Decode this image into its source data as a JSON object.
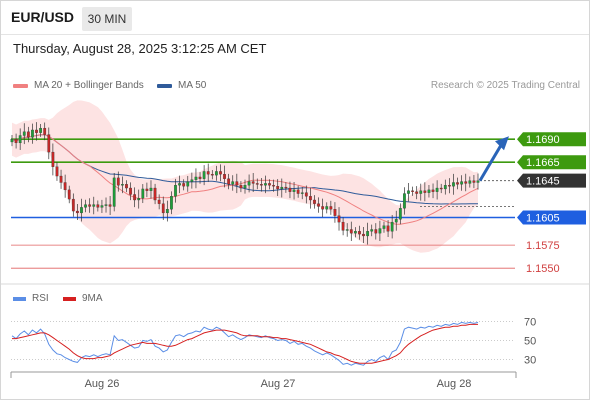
{
  "header": {
    "symbol": "EUR/USD",
    "timeframe": "30 MIN",
    "datetime": "Thursday, August 28, 2025 3:12:25 AM CET"
  },
  "legend": {
    "ma20_label": "MA 20 + Bollinger Bands",
    "ma50_label": "MA 50",
    "source": "Research © 2025 Trading Central"
  },
  "rsi_legend": {
    "rsi_label": "RSI",
    "ma_label": "9MA"
  },
  "colors": {
    "ma20": "#f08080",
    "ma50": "#2f5b9a",
    "bands": "#fde3e3",
    "up": "#1f9e3a",
    "down": "#c62828",
    "green_level": "#3d9a0f",
    "blue_level": "#1f5fe0",
    "red_level": "#e06060",
    "rsi": "#5b8ee6",
    "rsi_ma": "#d62020"
  },
  "chart_data": {
    "type": "candlestick",
    "y_range": [
      1.1535,
      1.1713
    ],
    "x_labels": [
      "Aug 26",
      "Aug 27",
      "Aug 28"
    ],
    "levels": [
      {
        "value": 1.169,
        "label": "1.1690",
        "kind": "resistance"
      },
      {
        "value": 1.1665,
        "label": "1.1665",
        "kind": "resistance"
      },
      {
        "value": 1.1645,
        "label": "1.1645",
        "kind": "current"
      },
      {
        "value": 1.1605,
        "label": "1.1605",
        "kind": "pivot"
      },
      {
        "value": 1.1575,
        "label": "1.1575",
        "kind": "support"
      },
      {
        "value": 1.155,
        "label": "1.1550",
        "kind": "support"
      }
    ],
    "closes": [
      1.169,
      1.1686,
      1.1694,
      1.1698,
      1.1692,
      1.17,
      1.1697,
      1.1702,
      1.1695,
      1.1676,
      1.166,
      1.165,
      1.1643,
      1.1635,
      1.1625,
      1.1612,
      1.161,
      1.1616,
      1.1619,
      1.1617,
      1.1619,
      1.1616,
      1.1618,
      1.1619,
      1.1617,
      1.1648,
      1.164,
      1.1641,
      1.1637,
      1.163,
      1.1624,
      1.1626,
      1.1636,
      1.1634,
      1.1637,
      1.1624,
      1.162,
      1.161,
      1.1614,
      1.1628,
      1.164,
      1.1642,
      1.1639,
      1.1644,
      1.1646,
      1.1649,
      1.1647,
      1.1655,
      1.1652,
      1.1651,
      1.1655,
      1.1652,
      1.1647,
      1.1641,
      1.1644,
      1.164,
      1.1637,
      1.164,
      1.1644,
      1.1642,
      1.1641,
      1.164,
      1.1642,
      1.164,
      1.1639,
      1.1636,
      1.1638,
      1.1637,
      1.1633,
      1.1635,
      1.1631,
      1.1632,
      1.1628,
      1.1624,
      1.162,
      1.1617,
      1.1614,
      1.1617,
      1.1614,
      1.1607,
      1.16,
      1.1591,
      1.1592,
      1.1588,
      1.159,
      1.1587,
      1.1585,
      1.159,
      1.1592,
      1.1588,
      1.1593,
      1.1596,
      1.159,
      1.16,
      1.1603,
      1.1615,
      1.1631,
      1.1634,
      1.1633,
      1.1631,
      1.1634,
      1.1632,
      1.1635,
      1.1633,
      1.1637,
      1.1636,
      1.164,
      1.1639,
      1.1643,
      1.1641,
      1.1644,
      1.1642,
      1.1645,
      1.1643,
      1.1645
    ],
    "rsi": {
      "levels": [
        70,
        50,
        30
      ],
      "values": [
        55,
        52,
        57,
        60,
        56,
        61,
        58,
        62,
        57,
        46,
        40,
        36,
        35,
        32,
        30,
        28,
        27,
        32,
        34,
        33,
        35,
        33,
        35,
        36,
        35,
        55,
        50,
        51,
        48,
        45,
        42,
        43,
        50,
        49,
        51,
        44,
        42,
        38,
        40,
        48,
        55,
        56,
        54,
        57,
        58,
        60,
        59,
        64,
        62,
        61,
        64,
        62,
        58,
        54,
        56,
        53,
        51,
        53,
        56,
        55,
        54,
        53,
        55,
        53,
        52,
        50,
        51,
        50,
        47,
        49,
        46,
        47,
        44,
        42,
        39,
        37,
        35,
        37,
        35,
        32,
        29,
        25,
        26,
        24,
        26,
        25,
        24,
        28,
        30,
        28,
        32,
        34,
        30,
        38,
        40,
        48,
        62,
        64,
        63,
        62,
        64,
        63,
        65,
        64,
        66,
        65,
        67,
        66,
        68,
        67,
        69,
        68,
        69,
        68,
        69
      ],
      "ma9": [
        52,
        52,
        53,
        54,
        55,
        56,
        57,
        58,
        58,
        56,
        53,
        50,
        47,
        44,
        41,
        37,
        34,
        32,
        31,
        31,
        31,
        32,
        32,
        33,
        34,
        37,
        39,
        41,
        43,
        45,
        46,
        47,
        48,
        47,
        47,
        47,
        46,
        45,
        44,
        44,
        45,
        47,
        49,
        51,
        52,
        54,
        56,
        58,
        59,
        60,
        61,
        61,
        61,
        60,
        59,
        58,
        56,
        55,
        55,
        55,
        55,
        54,
        54,
        54,
        53,
        53,
        52,
        52,
        51,
        50,
        49,
        48,
        47,
        46,
        44,
        42,
        40,
        38,
        37,
        35,
        34,
        32,
        30,
        28,
        27,
        26,
        26,
        26,
        26,
        27,
        28,
        29,
        30,
        32,
        34,
        37,
        42,
        46,
        49,
        52,
        55,
        57,
        59,
        61,
        62,
        63,
        64,
        64,
        65,
        65,
        66,
        66,
        67,
        67,
        67
      ]
    }
  }
}
